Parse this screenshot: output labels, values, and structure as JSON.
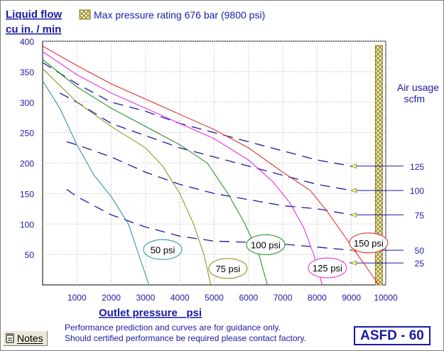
{
  "header": {
    "y_title_line1": "Liquid flow",
    "y_title_line2": "cu in. / min",
    "legend_label": "Max pressure rating 676 bar (9800 psi)"
  },
  "colors": {
    "axis_text": "#1a1aa6",
    "dashed": "#1a1aa6",
    "hatch": "#8a7a1a",
    "hatch_fill": "#f2efc4"
  },
  "chart_data": {
    "type": "line",
    "xlabel": "Outlet pressure   psi",
    "ylabel": "Liquid flow cu in. / min",
    "xlim": [
      0,
      10000
    ],
    "ylim": [
      0,
      400
    ],
    "x_ticks": [
      1000,
      2000,
      3000,
      4000,
      5000,
      6000,
      7000,
      8000,
      9000,
      10000
    ],
    "y_ticks": [
      50,
      100,
      150,
      200,
      250,
      300,
      350,
      400
    ],
    "max_pressure_psi": 9800,
    "air_usage_title_line1": "Air usage",
    "air_usage_title_line2": "scfm",
    "series": [
      {
        "name": "50 psi",
        "color": "#1f8f9a",
        "label_x": 3500,
        "label_y": 58,
        "label_border": "#1f8f9a",
        "x": [
          0,
          500,
          1000,
          1500,
          2000,
          2500,
          2800,
          3100
        ],
        "y": [
          335,
          290,
          230,
          180,
          145,
          100,
          50,
          0
        ]
      },
      {
        "name": "75 psi",
        "color": "#8a8a10",
        "label_x": 5400,
        "label_y": 27,
        "label_border": "#8a8a10",
        "x": [
          0,
          1000,
          2000,
          3000,
          3500,
          4000,
          4400,
          4700,
          4900
        ],
        "y": [
          355,
          300,
          260,
          225,
          195,
          150,
          100,
          50,
          0
        ]
      },
      {
        "name": "100 psi",
        "color": "#1a8a1a",
        "label_x": 6500,
        "label_y": 66,
        "label_border": "#1a8a1a",
        "x": [
          0,
          1000,
          2000,
          3000,
          4000,
          4800,
          5400,
          5900,
          6300,
          6550
        ],
        "y": [
          370,
          325,
          290,
          260,
          230,
          200,
          150,
          100,
          50,
          0
        ]
      },
      {
        "name": "125 psi",
        "color": "#e020e0",
        "label_x": 8300,
        "label_y": 28,
        "label_border": "#e020e0",
        "x": [
          0,
          1000,
          2000,
          3000,
          4000,
          5000,
          6000,
          6700,
          7200,
          7600,
          7900,
          8150
        ],
        "y": [
          383,
          345,
          315,
          290,
          265,
          240,
          205,
          170,
          135,
          95,
          50,
          0
        ]
      },
      {
        "name": "150 psi",
        "color": "#e02020",
        "label_x": 9500,
        "label_y": 69,
        "label_border": "#d02020",
        "x": [
          0,
          1000,
          2000,
          3000,
          4000,
          5000,
          6000,
          7000,
          7800,
          8300,
          8800,
          9300,
          9800
        ],
        "y": [
          392,
          360,
          330,
          305,
          280,
          255,
          225,
          185,
          155,
          120,
          80,
          40,
          0
        ]
      }
    ],
    "air_usage": [
      {
        "label": "125",
        "x": [
          0,
          1000,
          2000,
          3000,
          4000,
          5000,
          6000,
          7000,
          8000,
          9000
        ],
        "y": [
          365,
          330,
          300,
          285,
          265,
          250,
          235,
          220,
          205,
          195
        ]
      },
      {
        "label": "100",
        "x": [
          500,
          1000,
          2000,
          3000,
          4000,
          5000,
          6000,
          7000,
          8000,
          9000
        ],
        "y": [
          315,
          300,
          265,
          245,
          225,
          210,
          195,
          180,
          165,
          155
        ]
      },
      {
        "label": "75",
        "x": [
          700,
          1000,
          2000,
          3000,
          4000,
          5000,
          6000,
          7000,
          8000,
          9000
        ],
        "y": [
          235,
          230,
          210,
          185,
          165,
          150,
          140,
          130,
          125,
          115
        ]
      },
      {
        "label": "50",
        "x": [
          700,
          1000,
          2000,
          3000,
          4000,
          5000,
          6000,
          7000,
          8000,
          9000
        ],
        "y": [
          157,
          145,
          115,
          95,
          80,
          72,
          70,
          67,
          62,
          57
        ]
      },
      {
        "label": "25",
        "x": [
          8000,
          8800,
          9000
        ],
        "y": [
          40,
          38,
          36
        ]
      }
    ]
  },
  "notes_button": {
    "label": "Notes"
  },
  "footer": {
    "line1": "Performance prediction and curves are for guidance only.",
    "line2": "Should certified performance be required please contact factory."
  },
  "model": {
    "label": "ASFD - 60"
  }
}
